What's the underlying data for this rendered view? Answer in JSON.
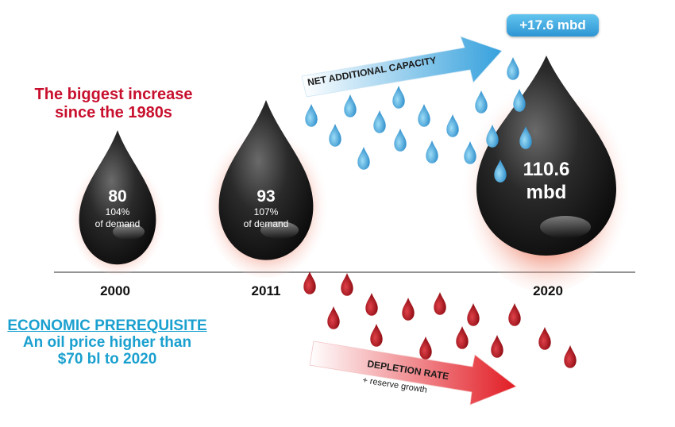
{
  "headline": [
    "The biggest increase",
    "since the 1980s"
  ],
  "prerequisite": {
    "title": "ECONOMIC PREREQUISITE",
    "line1": "An oil price higher than",
    "line2": "$70 bl to 2020"
  },
  "arrows": {
    "net_additional_capacity": "NET ADDITIONAL CAPACITY",
    "depletion_rate": "DEPLETION RATE",
    "reserve_growth": "+ reserve growth"
  },
  "increase_badge": "+17.6 mbd",
  "drops": [
    {
      "year": "2000",
      "value": "80",
      "pct": "104%",
      "note": "of demand"
    },
    {
      "year": "2011",
      "value": "93",
      "pct": "107%",
      "note": "of demand"
    },
    {
      "year": "2020",
      "value": "110.6",
      "unit": "mbd"
    }
  ],
  "colors": {
    "headline_red": "#c8102e",
    "prerequisite_blue": "#1aa0cf",
    "capacity_blue": "#3ea6de",
    "depletion_red": "#e5202a",
    "oil_black": "#1c1c1c"
  }
}
